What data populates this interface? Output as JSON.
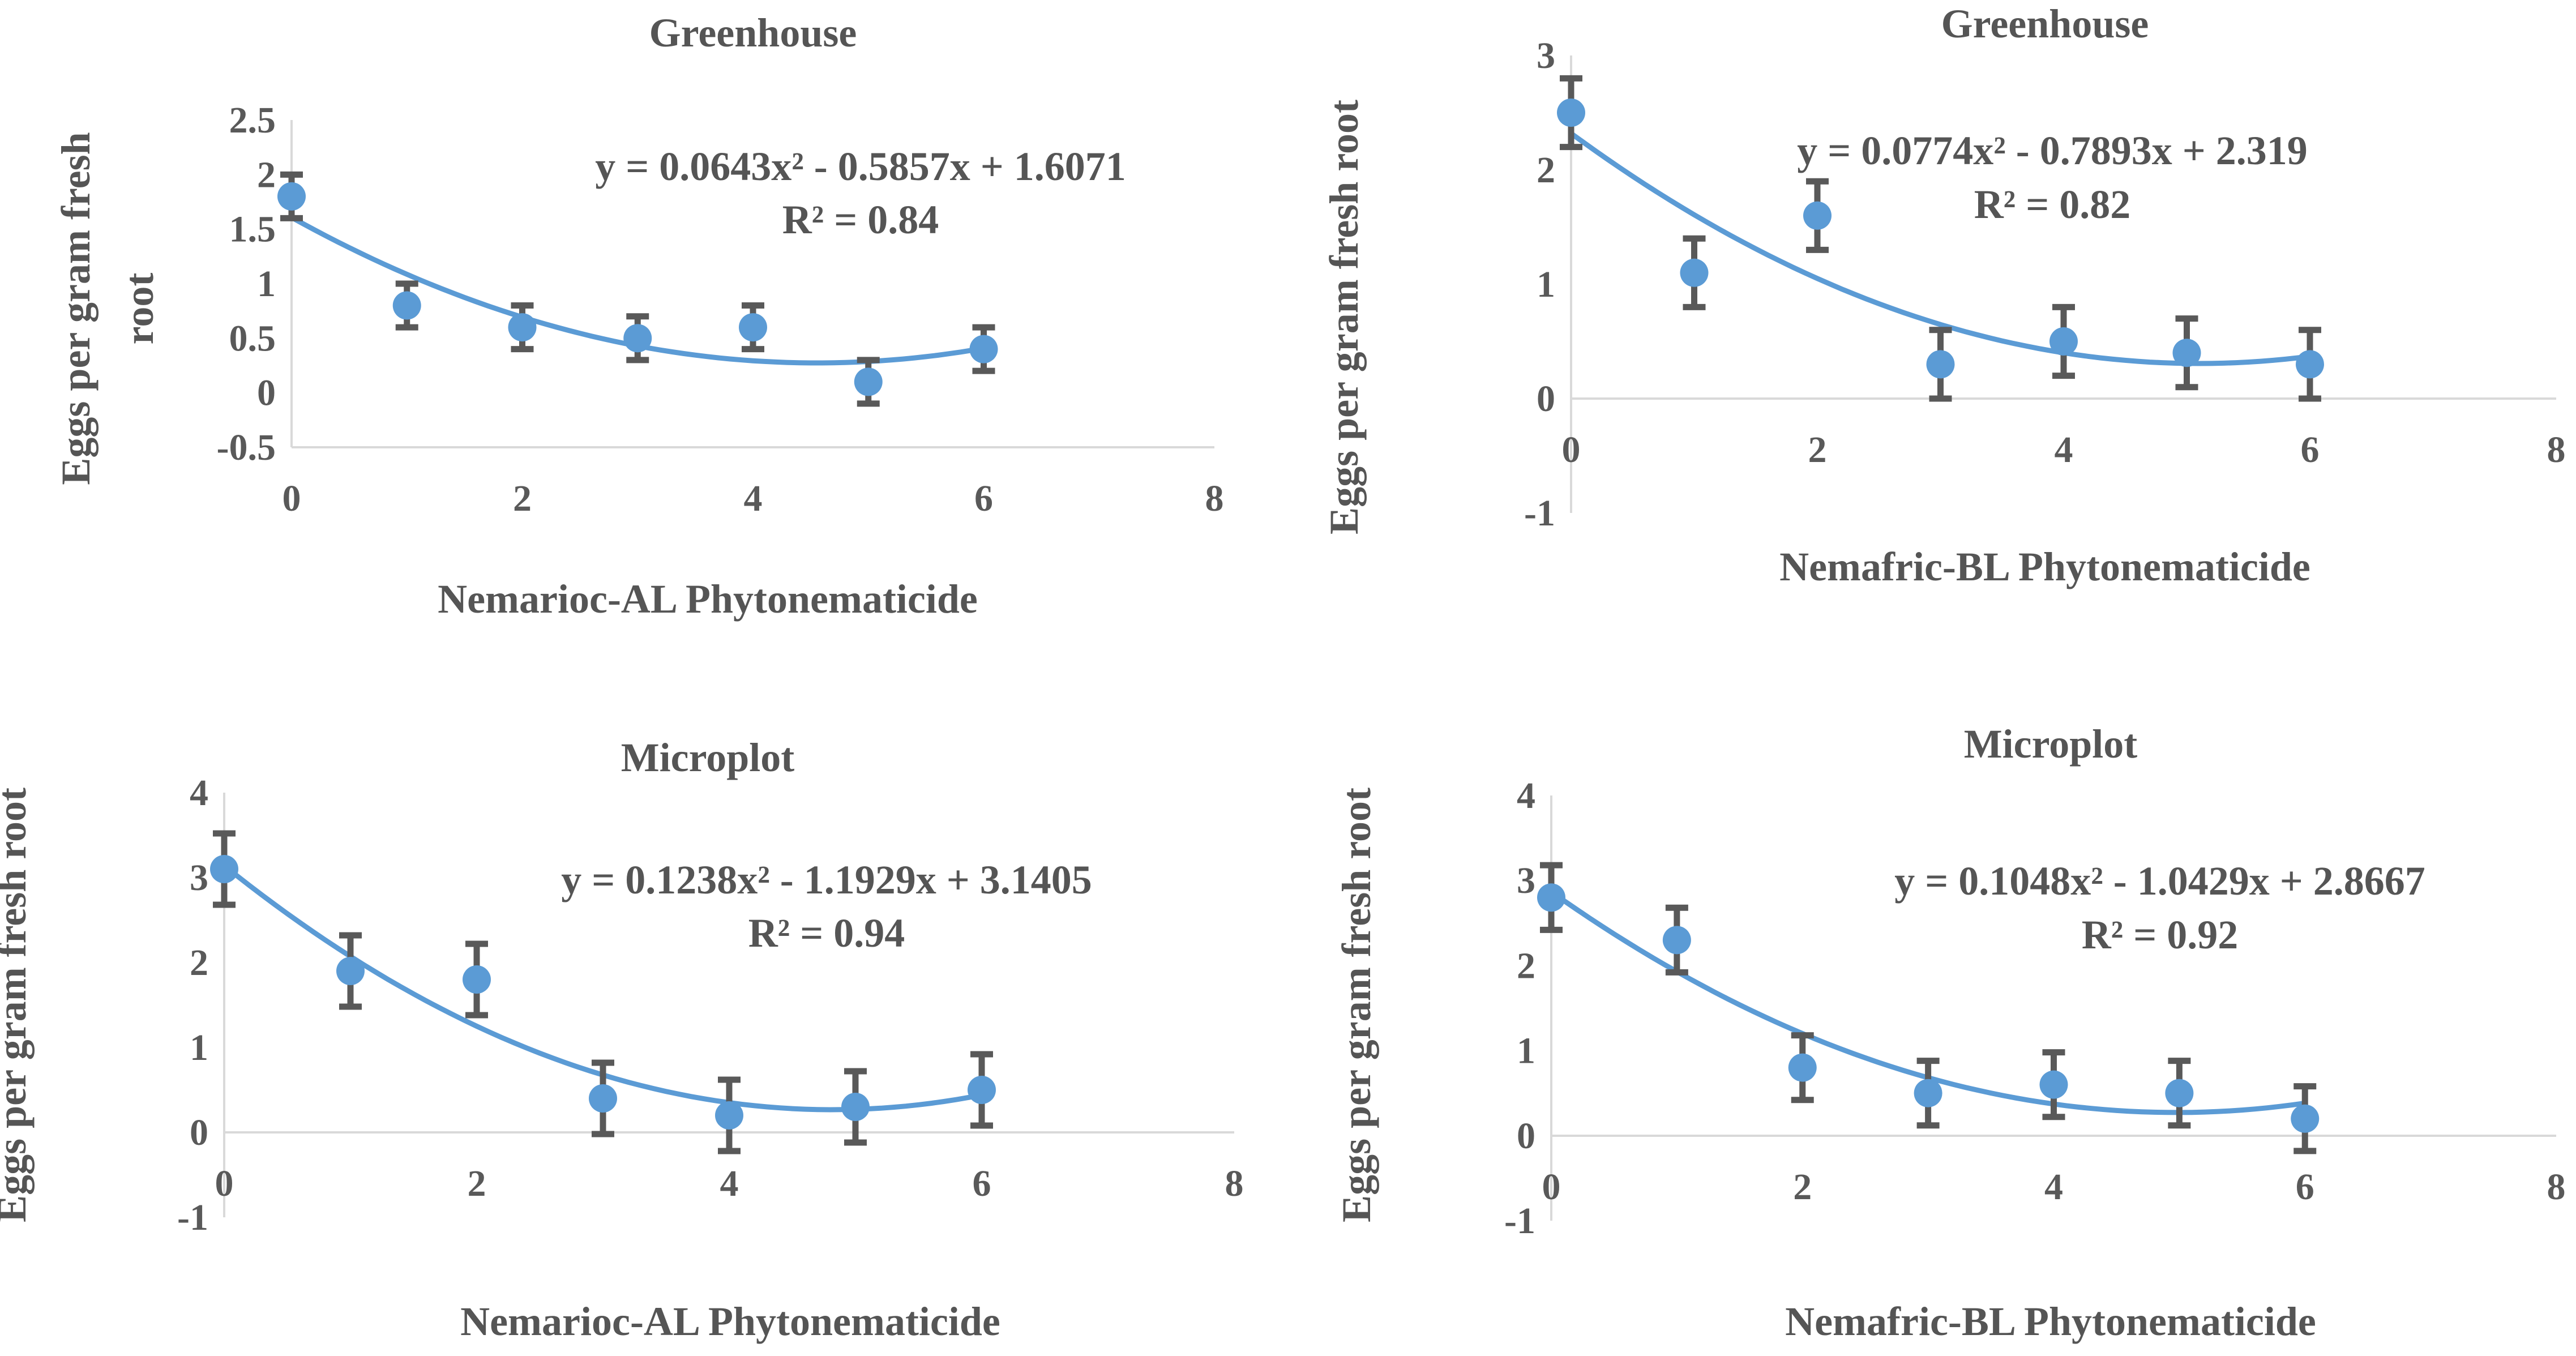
{
  "chart_data": [
    {
      "type": "scatter",
      "title": "Greenhouse",
      "xlabel": "Nemarioc-AL Phytonematicide",
      "ylabel": "Eggs per gram fresh root",
      "x": [
        0,
        1,
        2,
        3,
        4,
        5,
        6
      ],
      "values": [
        1.8,
        0.8,
        0.6,
        0.5,
        0.6,
        0.1,
        0.4
      ],
      "error": [
        0.2,
        0.2,
        0.2,
        0.2,
        0.2,
        0.2,
        0.2
      ],
      "xlim": [
        0,
        8
      ],
      "ylim": [
        -0.5,
        2.5
      ],
      "x_ticks": [
        "0",
        "2",
        "4",
        "6",
        "8"
      ],
      "y_ticks": [
        "-0.5",
        "0",
        "0.5",
        "1",
        "1.5",
        "2",
        "2.5"
      ],
      "trendline": {
        "a": 0.0643,
        "b": -0.5857,
        "c": 1.6071
      },
      "equation": "y = 0.0643x² - 0.5857x + 1.6071",
      "r2": "R² = 0.84"
    },
    {
      "type": "scatter",
      "title": "Greenhouse",
      "xlabel": "Nemafric-BL Phytonematicide",
      "ylabel": "Eggs per gram fresh root",
      "x": [
        0,
        1,
        2,
        3,
        4,
        5,
        6
      ],
      "values": [
        2.5,
        1.1,
        1.6,
        0.3,
        0.5,
        0.4,
        0.3
      ],
      "error": [
        0.3,
        0.3,
        0.3,
        0.3,
        0.3,
        0.3,
        0.3
      ],
      "xlim": [
        0,
        8
      ],
      "ylim": [
        -1,
        3
      ],
      "x_ticks": [
        "0",
        "2",
        "4",
        "6",
        "8"
      ],
      "y_ticks": [
        "-1",
        "0",
        "1",
        "2",
        "3"
      ],
      "trendline": {
        "a": 0.0774,
        "b": -0.7893,
        "c": 2.319
      },
      "equation": "y = 0.0774x² - 0.7893x + 2.319",
      "r2": "R² = 0.82"
    },
    {
      "type": "scatter",
      "title": "Microplot",
      "xlabel": "Nemarioc-AL Phytonematicide",
      "ylabel": "Eggs per gram fresh root",
      "x": [
        0,
        1,
        2,
        3,
        4,
        5,
        6
      ],
      "values": [
        3.1,
        1.9,
        1.8,
        0.4,
        0.2,
        0.3,
        0.5
      ],
      "error": [
        0.42,
        0.42,
        0.42,
        0.42,
        0.42,
        0.42,
        0.42
      ],
      "xlim": [
        0,
        8
      ],
      "ylim": [
        -1,
        4
      ],
      "x_ticks": [
        "0",
        "2",
        "4",
        "6",
        "8"
      ],
      "y_ticks": [
        "-1",
        "0",
        "1",
        "2",
        "3",
        "4"
      ],
      "trendline": {
        "a": 0.1238,
        "b": -1.1929,
        "c": 3.1405
      },
      "equation": "y = 0.1238x² - 1.1929x + 3.1405",
      "r2": "R² = 0.94"
    },
    {
      "type": "scatter",
      "title": "Microplot",
      "xlabel": "Nemafric-BL Phytonematicide",
      "ylabel": "Eggs per gram fresh root",
      "x": [
        0,
        1,
        2,
        3,
        4,
        5,
        6
      ],
      "values": [
        2.8,
        2.3,
        0.8,
        0.5,
        0.6,
        0.5,
        0.2
      ],
      "error": [
        0.38,
        0.38,
        0.38,
        0.38,
        0.38,
        0.38,
        0.38
      ],
      "xlim": [
        0,
        8
      ],
      "ylim": [
        -1,
        4
      ],
      "x_ticks": [
        "0",
        "2",
        "4",
        "6",
        "8"
      ],
      "y_ticks": [
        "-1",
        "0",
        "1",
        "2",
        "3",
        "4"
      ],
      "trendline": {
        "a": 0.1048,
        "b": -1.0429,
        "c": 2.8667
      },
      "equation": "y = 0.1048x² - 1.0429x + 2.8667",
      "r2": "R² = 0.92"
    }
  ]
}
